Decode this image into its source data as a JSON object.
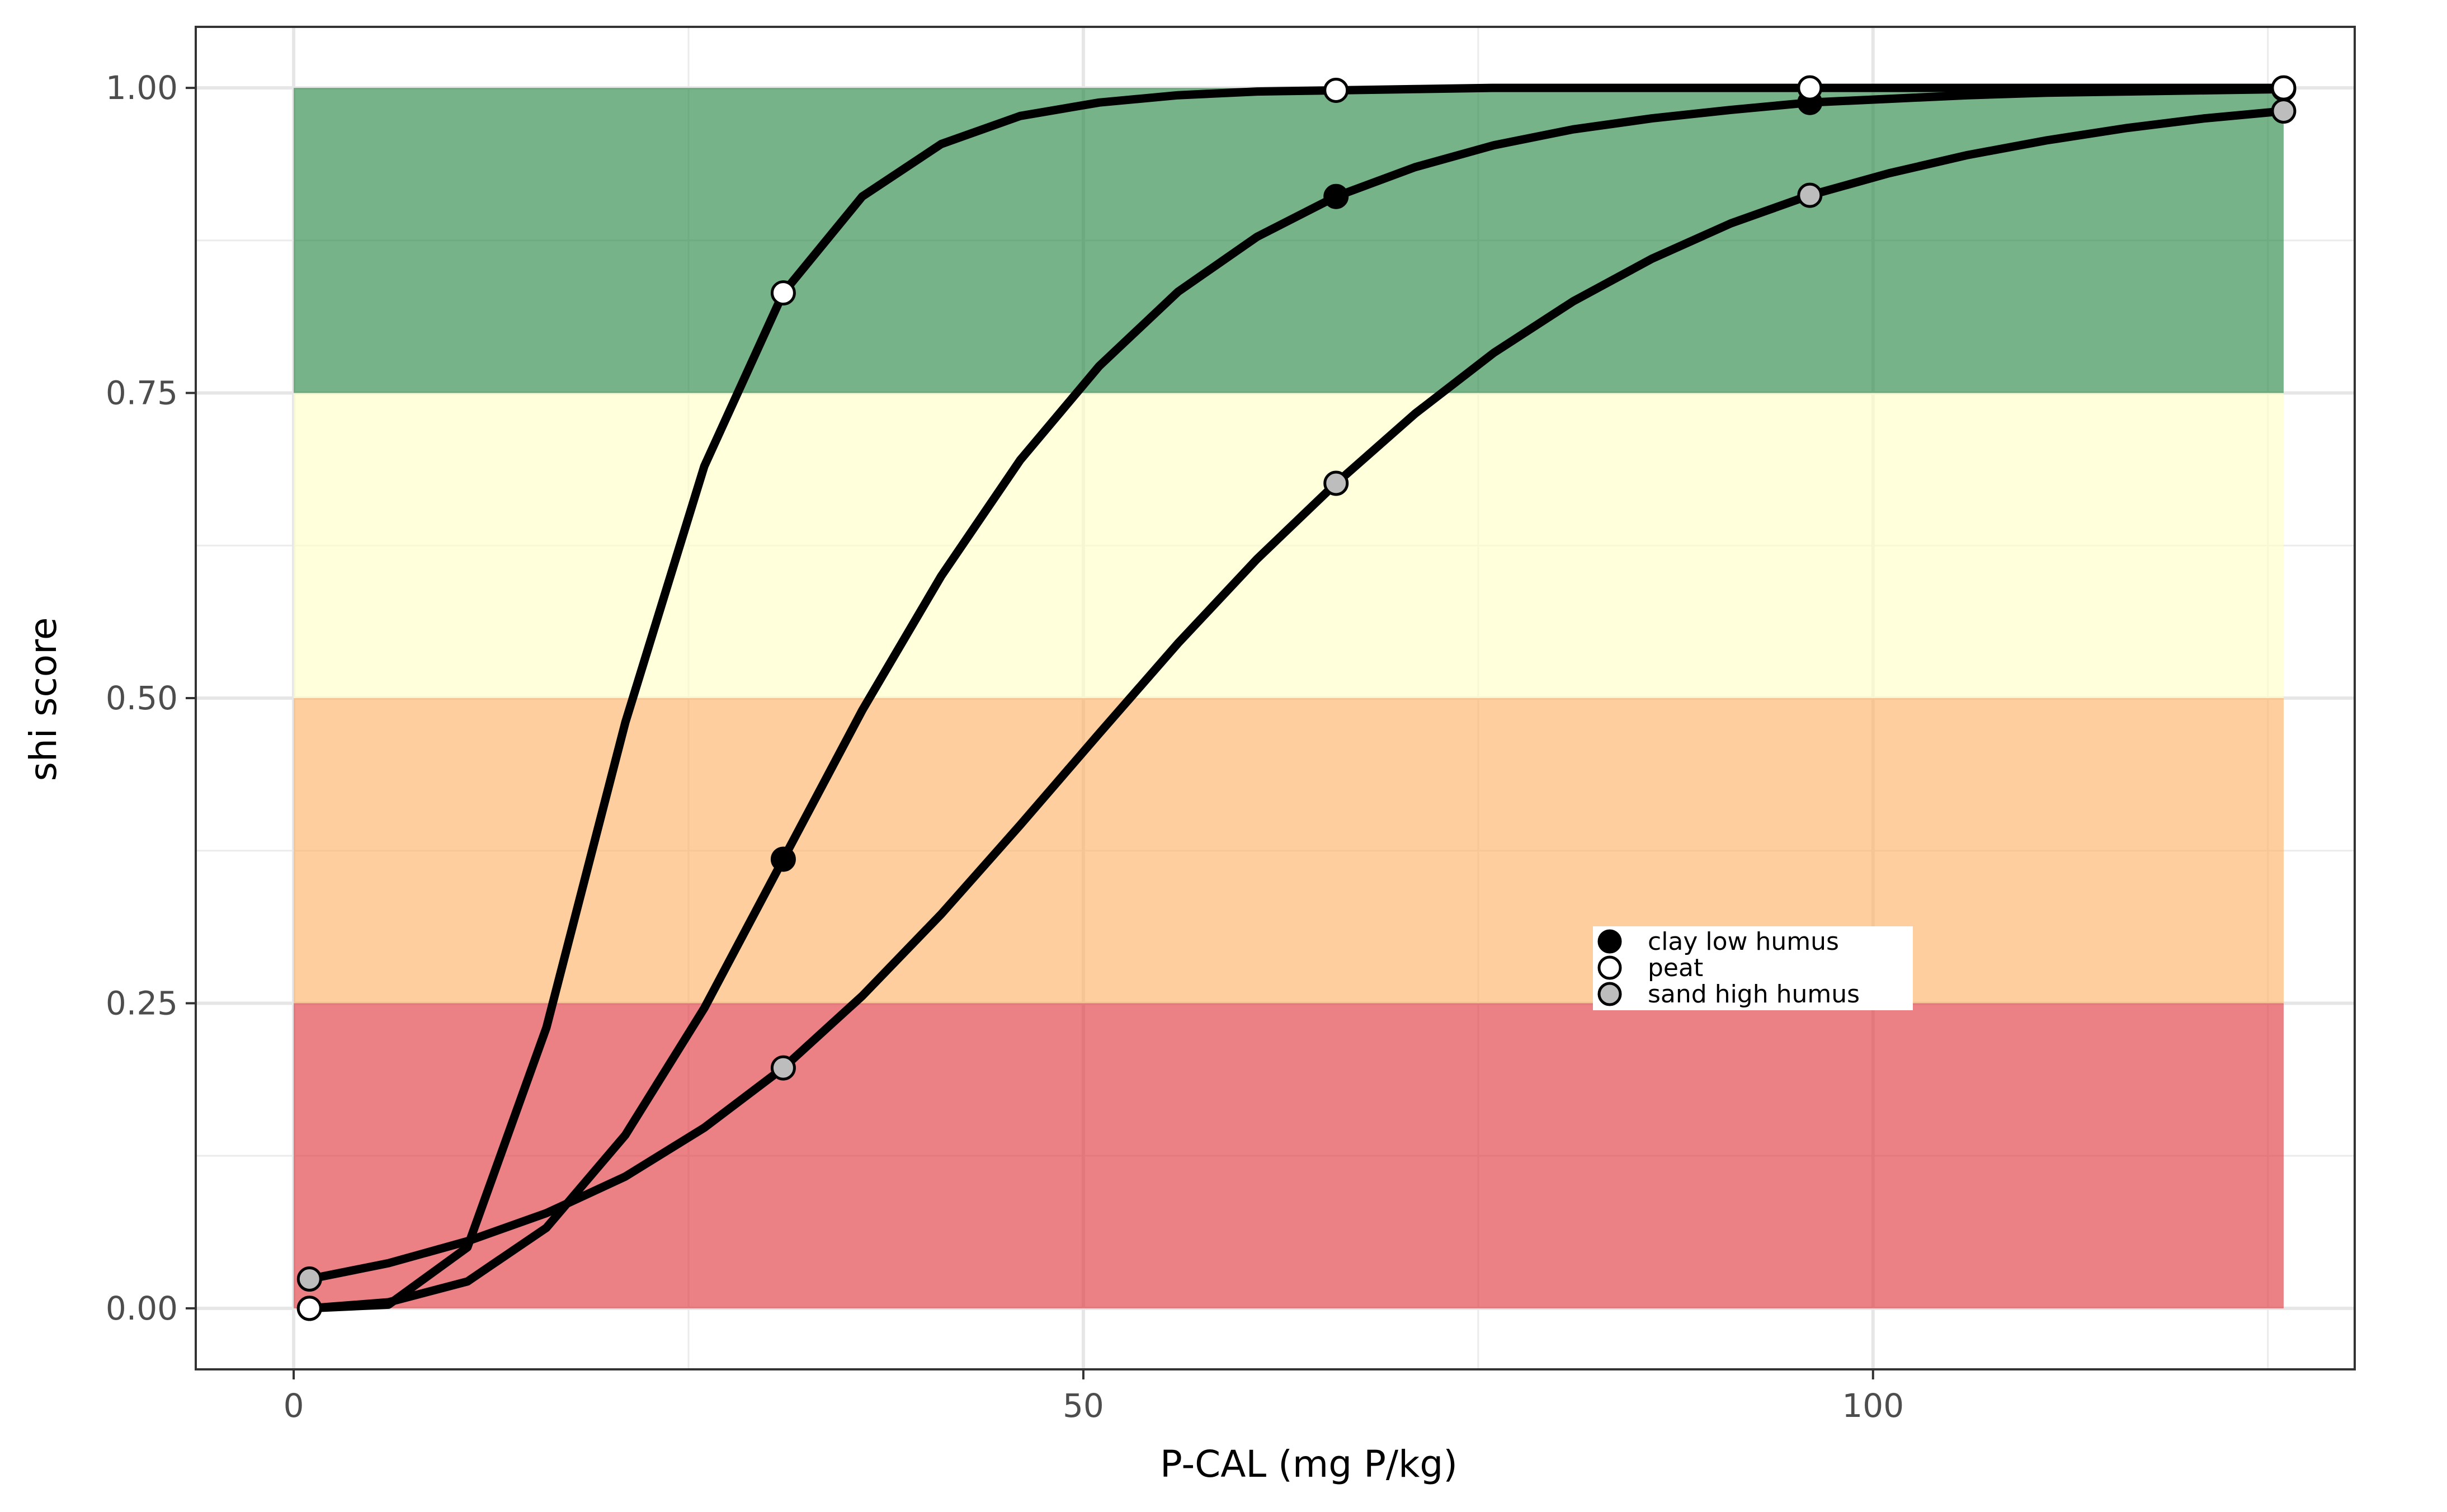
{
  "chart_data": {
    "type": "line",
    "title": "",
    "xlabel": "P-CAL (mg P/kg)",
    "ylabel": "shi score",
    "xlim": [
      -6.2,
      130.5
    ],
    "ylim": [
      -0.05,
      1.05
    ],
    "x_ticks": [
      0,
      50,
      100
    ],
    "x_tick_labels": [
      "0",
      "50",
      "100"
    ],
    "y_ticks": [
      0,
      0.25,
      0.5,
      0.75,
      1.0
    ],
    "y_tick_labels": [
      "0.00",
      "0.25",
      "0.50",
      "0.75",
      "1.00"
    ],
    "x_minor_ticks": [
      25,
      75,
      125
    ],
    "y_minor_ticks": [
      0.125,
      0.375,
      0.625,
      0.875
    ],
    "grid": true,
    "legend_position": "inside-center-right",
    "bands": [
      {
        "from": 0.0,
        "to": 0.25,
        "color": "#e03c44"
      },
      {
        "from": 0.25,
        "to": 0.5,
        "color": "#fdb36b"
      },
      {
        "from": 0.5,
        "to": 0.75,
        "color": "#ffffc8"
      },
      {
        "from": 0.75,
        "to": 1.0,
        "color": "#2e8a4a"
      }
    ],
    "band_x_range": [
      0,
      126
    ],
    "band_opacity": 0.65,
    "series": [
      {
        "name": "clay low humus",
        "marker_fill": "#000000",
        "x": [
          1,
          6,
          11,
          16,
          21,
          26,
          31,
          36,
          41,
          46,
          51,
          56,
          61,
          66,
          71,
          76,
          81,
          86,
          91,
          96,
          101,
          106,
          111,
          116,
          121,
          126
        ],
        "y": [
          0.0,
          0.005,
          0.022,
          0.066,
          0.142,
          0.246,
          0.368,
          0.49,
          0.6,
          0.695,
          0.772,
          0.833,
          0.878,
          0.911,
          0.935,
          0.953,
          0.966,
          0.975,
          0.982,
          0.988,
          0.991,
          0.994,
          0.996,
          0.997,
          0.998,
          0.999
        ],
        "marker_x": [
          1,
          31,
          66,
          96,
          126
        ],
        "marker_y": [
          0.0,
          0.368,
          0.911,
          0.988,
          0.999
        ]
      },
      {
        "name": "peat",
        "marker_fill": "#ffffff",
        "x": [
          1,
          6,
          11,
          16,
          21,
          26,
          31,
          36,
          41,
          46,
          51,
          56,
          61,
          66,
          71,
          76,
          81,
          86,
          91,
          96,
          101,
          106,
          111,
          116,
          121,
          126
        ],
        "y": [
          0.0,
          0.003,
          0.05,
          0.23,
          0.48,
          0.69,
          0.832,
          0.911,
          0.954,
          0.977,
          0.988,
          0.994,
          0.997,
          0.998,
          0.999,
          1.0,
          1.0,
          1.0,
          1.0,
          1.0,
          1.0,
          1.0,
          1.0,
          1.0,
          1.0,
          1.0
        ],
        "marker_x": [
          1,
          31,
          66,
          96,
          126
        ],
        "marker_y": [
          0.0,
          0.832,
          0.998,
          1.0,
          1.0
        ]
      },
      {
        "name": "sand high humus",
        "marker_fill": "#bdbdbd",
        "x": [
          1,
          6,
          11,
          16,
          21,
          26,
          31,
          36,
          41,
          46,
          51,
          56,
          61,
          66,
          71,
          76,
          81,
          86,
          91,
          96,
          101,
          106,
          111,
          116,
          121,
          126
        ],
        "y": [
          0.024,
          0.037,
          0.055,
          0.078,
          0.108,
          0.148,
          0.197,
          0.256,
          0.323,
          0.396,
          0.471,
          0.545,
          0.614,
          0.676,
          0.733,
          0.783,
          0.825,
          0.86,
          0.889,
          0.912,
          0.93,
          0.945,
          0.957,
          0.967,
          0.975,
          0.981
        ],
        "marker_x": [
          1,
          31,
          66,
          96,
          126
        ],
        "marker_y": [
          0.024,
          0.197,
          0.676,
          0.912,
          0.981
        ]
      }
    ]
  }
}
